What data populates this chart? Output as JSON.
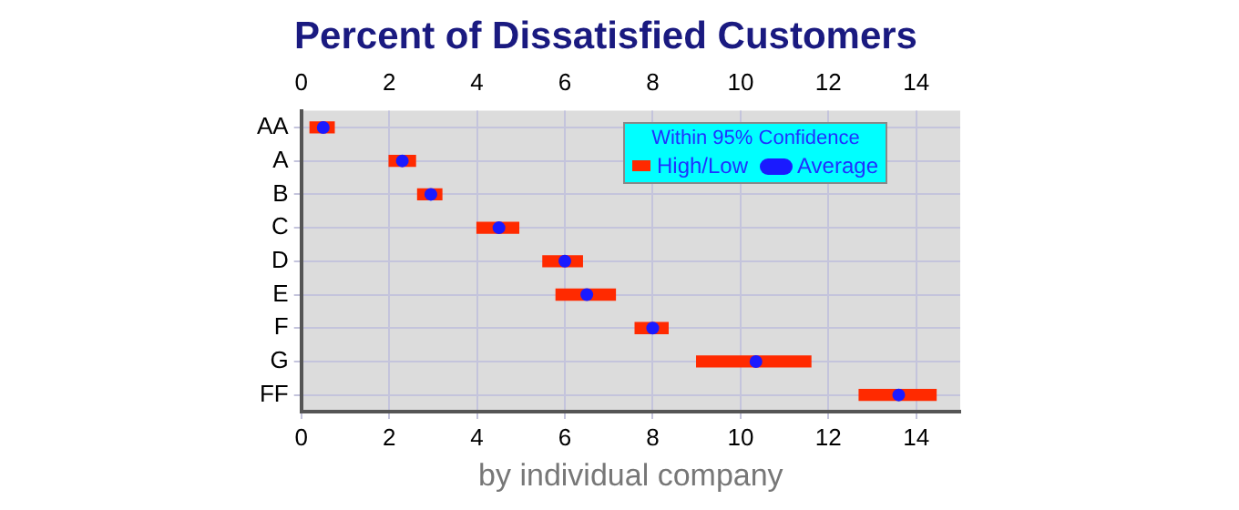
{
  "chart_data": {
    "type": "bar",
    "orientation": "horizontal",
    "title": "Percent of Dissatisfied Customers",
    "xlabel": "by individual company",
    "legend_title": "Within 95% Confidence",
    "legend": "top right",
    "grid": true,
    "categories": [
      "AA",
      "A",
      "B",
      "C",
      "D",
      "E",
      "F",
      "G",
      "FF"
    ],
    "xlim": [
      0,
      15
    ],
    "xticks": [
      0,
      2,
      4,
      6,
      8,
      10,
      12,
      14
    ],
    "x2lim": [
      0,
      15
    ],
    "x2ticks": [
      0,
      2,
      4,
      6,
      8,
      10,
      12,
      14
    ],
    "series": [
      {
        "name": "High/Low",
        "color": "#ff2a00",
        "base": [
          0.2,
          2.0,
          2.65,
          4.0,
          5.5,
          5.8,
          7.6,
          9.0,
          12.7
        ],
        "values": [
          0.55,
          0.6,
          0.55,
          0.95,
          0.9,
          1.35,
          0.75,
          2.6,
          1.75
        ]
      },
      {
        "name": "Average",
        "type": "scatter",
        "color": "#1a1aff",
        "x": [
          "AA",
          "A",
          "B",
          "C",
          "D",
          "E",
          "F",
          "G",
          "FF"
        ],
        "values": [
          0.5,
          2.3,
          2.95,
          4.5,
          6.0,
          6.5,
          8.0,
          10.35,
          13.6
        ]
      }
    ]
  }
}
